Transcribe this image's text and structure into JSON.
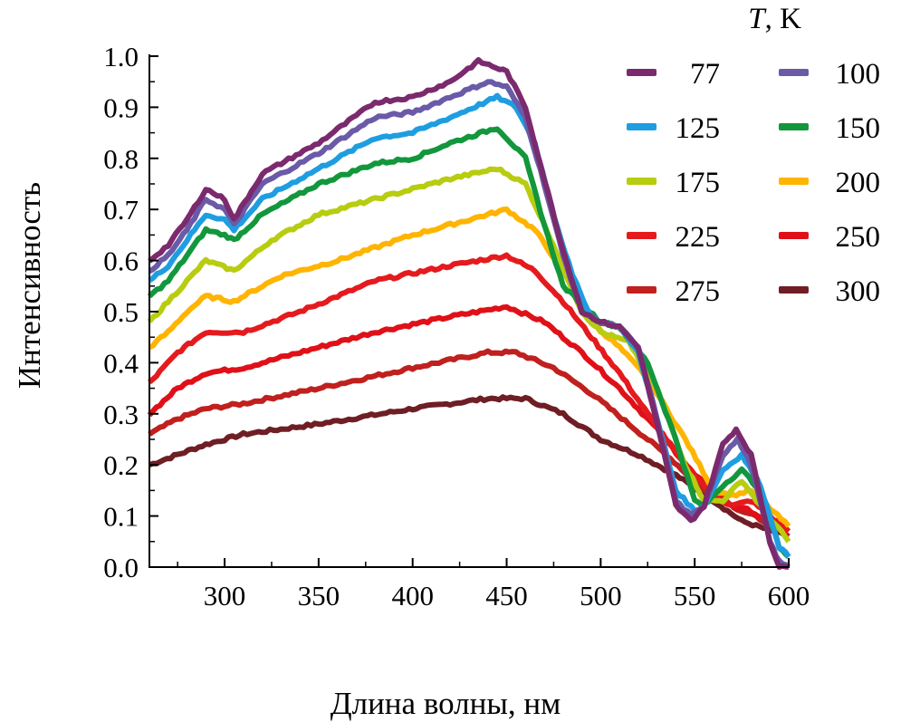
{
  "chart_data": {
    "type": "line",
    "xlabel": "Длина волны, нм",
    "ylabel": "Интенсивность",
    "xlim": [
      260,
      600
    ],
    "ylim": [
      0.0,
      1.0
    ],
    "xticks": [
      "300",
      "350",
      "400",
      "450",
      "500",
      "550",
      "600"
    ],
    "yticks": [
      "0.0",
      "0.1",
      "0.2",
      "0.3",
      "0.4",
      "0.5",
      "0.6",
      "0.7",
      "0.8",
      "0.9",
      "1.0"
    ],
    "grid": false,
    "legend": {
      "title_italic": "T",
      "title_rest": ", K",
      "placement": "top-right"
    },
    "series": [
      {
        "name": "77",
        "color": "#7b2a6e",
        "x": [
          260,
          270,
          280,
          290,
          300,
          305,
          320,
          350,
          380,
          400,
          420,
          435,
          450,
          460,
          470,
          480,
          490,
          500,
          510,
          520,
          530,
          540,
          548,
          555,
          565,
          572,
          580,
          590,
          595,
          600
        ],
        "y": [
          0.6,
          0.63,
          0.68,
          0.74,
          0.72,
          0.68,
          0.77,
          0.83,
          0.91,
          0.92,
          0.95,
          0.99,
          0.97,
          0.9,
          0.76,
          0.62,
          0.5,
          0.48,
          0.47,
          0.43,
          0.28,
          0.12,
          0.09,
          0.12,
          0.24,
          0.27,
          0.22,
          0.05,
          0.0,
          0.0
        ]
      },
      {
        "name": "100",
        "color": "#6a5aa8",
        "x": [
          260,
          270,
          280,
          290,
          300,
          305,
          320,
          350,
          380,
          400,
          420,
          440,
          450,
          460,
          470,
          480,
          490,
          500,
          510,
          520,
          530,
          540,
          548,
          555,
          565,
          573,
          580,
          590,
          595,
          600
        ],
        "y": [
          0.58,
          0.61,
          0.66,
          0.72,
          0.7,
          0.67,
          0.75,
          0.81,
          0.88,
          0.89,
          0.92,
          0.95,
          0.94,
          0.88,
          0.75,
          0.61,
          0.5,
          0.48,
          0.47,
          0.43,
          0.29,
          0.13,
          0.1,
          0.12,
          0.22,
          0.25,
          0.2,
          0.05,
          0.01,
          0.0
        ]
      },
      {
        "name": "125",
        "color": "#1e9ee0",
        "x": [
          260,
          270,
          280,
          290,
          300,
          305,
          320,
          350,
          380,
          400,
          420,
          445,
          455,
          465,
          475,
          485,
          495,
          500,
          510,
          520,
          530,
          540,
          550,
          555,
          565,
          575,
          585,
          595,
          600
        ],
        "y": [
          0.56,
          0.59,
          0.64,
          0.69,
          0.68,
          0.66,
          0.72,
          0.78,
          0.84,
          0.85,
          0.88,
          0.92,
          0.9,
          0.83,
          0.69,
          0.57,
          0.49,
          0.48,
          0.47,
          0.42,
          0.29,
          0.15,
          0.11,
          0.12,
          0.19,
          0.22,
          0.16,
          0.04,
          0.02
        ]
      },
      {
        "name": "150",
        "color": "#12973c",
        "x": [
          260,
          270,
          280,
          290,
          300,
          305,
          320,
          350,
          380,
          400,
          420,
          445,
          460,
          470,
          480,
          500,
          510,
          525,
          540,
          550,
          555,
          565,
          575,
          585,
          595,
          600
        ],
        "y": [
          0.53,
          0.56,
          0.61,
          0.66,
          0.65,
          0.64,
          0.69,
          0.75,
          0.79,
          0.8,
          0.83,
          0.86,
          0.8,
          0.67,
          0.55,
          0.48,
          0.47,
          0.4,
          0.25,
          0.13,
          0.12,
          0.16,
          0.19,
          0.15,
          0.04,
          0.02
        ]
      },
      {
        "name": "175",
        "color": "#b8cc10",
        "x": [
          260,
          270,
          280,
          290,
          305,
          325,
          350,
          390,
          420,
          445,
          460,
          475,
          490,
          500,
          515,
          530,
          545,
          555,
          565,
          575,
          585,
          600
        ],
        "y": [
          0.48,
          0.52,
          0.56,
          0.6,
          0.58,
          0.64,
          0.69,
          0.73,
          0.76,
          0.78,
          0.75,
          0.63,
          0.5,
          0.46,
          0.44,
          0.35,
          0.2,
          0.13,
          0.13,
          0.17,
          0.12,
          0.05
        ]
      },
      {
        "name": "200",
        "color": "#ffb400",
        "x": [
          260,
          270,
          280,
          290,
          305,
          330,
          360,
          400,
          430,
          450,
          465,
          480,
          495,
          510,
          525,
          545,
          560,
          570,
          580,
          600
        ],
        "y": [
          0.43,
          0.46,
          0.5,
          0.53,
          0.52,
          0.57,
          0.6,
          0.65,
          0.68,
          0.7,
          0.66,
          0.58,
          0.48,
          0.43,
          0.37,
          0.25,
          0.15,
          0.14,
          0.15,
          0.08
        ]
      },
      {
        "name": "225",
        "color": "#e51a1e",
        "x": [
          260,
          275,
          290,
          310,
          340,
          380,
          420,
          450,
          465,
          480,
          495,
          510,
          525,
          545,
          560,
          570,
          580,
          600
        ],
        "y": [
          0.36,
          0.42,
          0.46,
          0.46,
          0.5,
          0.56,
          0.59,
          0.61,
          0.58,
          0.52,
          0.45,
          0.38,
          0.3,
          0.2,
          0.14,
          0.12,
          0.13,
          0.07
        ]
      },
      {
        "name": "250",
        "color": "#e01018",
        "x": [
          260,
          275,
          290,
          310,
          340,
          380,
          420,
          450,
          470,
          490,
          510,
          530,
          550,
          570,
          580,
          600
        ],
        "y": [
          0.3,
          0.35,
          0.38,
          0.39,
          0.42,
          0.46,
          0.49,
          0.51,
          0.48,
          0.42,
          0.35,
          0.27,
          0.18,
          0.12,
          0.11,
          0.06
        ]
      },
      {
        "name": "275",
        "color": "#c0201e",
        "x": [
          260,
          275,
          290,
          310,
          350,
          400,
          440,
          455,
          475,
          495,
          515,
          535,
          555,
          575,
          600
        ],
        "y": [
          0.26,
          0.29,
          0.31,
          0.32,
          0.35,
          0.39,
          0.42,
          0.42,
          0.39,
          0.34,
          0.28,
          0.22,
          0.15,
          0.11,
          0.07
        ]
      },
      {
        "name": "300",
        "color": "#6e1e24",
        "x": [
          260,
          275,
          290,
          310,
          350,
          400,
          440,
          460,
          480,
          500,
          520,
          540,
          560,
          575,
          600
        ],
        "y": [
          0.2,
          0.22,
          0.24,
          0.26,
          0.28,
          0.31,
          0.33,
          0.33,
          0.3,
          0.25,
          0.22,
          0.18,
          0.13,
          0.09,
          0.06
        ]
      }
    ]
  }
}
